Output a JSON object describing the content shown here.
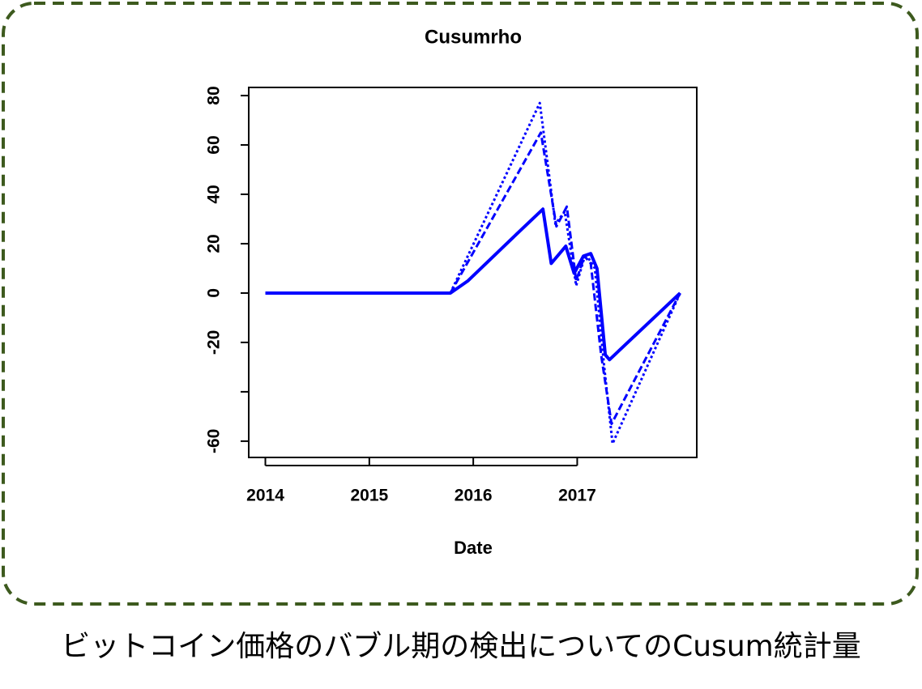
{
  "chart_data": {
    "type": "line",
    "title": "Cusumrho",
    "x_label": "Date",
    "xlim": [
      2013.84,
      2018.15
    ],
    "xticks": [
      2014,
      2015,
      2016,
      2017
    ],
    "ylim": [
      -66.6,
      83.3
    ],
    "yticks": [
      80,
      60,
      40,
      20,
      0,
      -20,
      {
        "value": -40,
        "label": null
      },
      -60
    ],
    "series": [
      {
        "color": "#0000ff",
        "dash": "solid",
        "x": [
          2014.0,
          2015.78,
          2015.95,
          2016.37,
          2016.67,
          2016.75,
          2016.89,
          2016.97,
          2017.06,
          2017.13,
          2017.19,
          2017.27,
          2017.31,
          2017.99
        ],
        "values": [
          0,
          0,
          5,
          22,
          34,
          12,
          19,
          8,
          15,
          16,
          10,
          -25,
          -27,
          0
        ]
      },
      {
        "color": "#0000ff",
        "dash": "dashed",
        "x": [
          2015.78,
          2016.65,
          2016.8,
          2016.9,
          2016.99,
          2017.07,
          2017.13,
          2017.23,
          2017.33,
          2017.99
        ],
        "values": [
          0,
          65,
          27,
          35,
          5,
          15,
          12,
          -25,
          -53,
          0
        ]
      },
      {
        "color": "#0000ff",
        "dash": "dotted",
        "x": [
          2015.78,
          2016.64,
          2016.79,
          2016.88,
          2016.99,
          2017.08,
          2017.17,
          2017.26,
          2017.34,
          2017.99
        ],
        "values": [
          0,
          77,
          28,
          33,
          3,
          16,
          10,
          -30,
          -61,
          0
        ]
      }
    ]
  },
  "caption": "ビットコイン価格のバブル期の検出についてのCusum統計量"
}
